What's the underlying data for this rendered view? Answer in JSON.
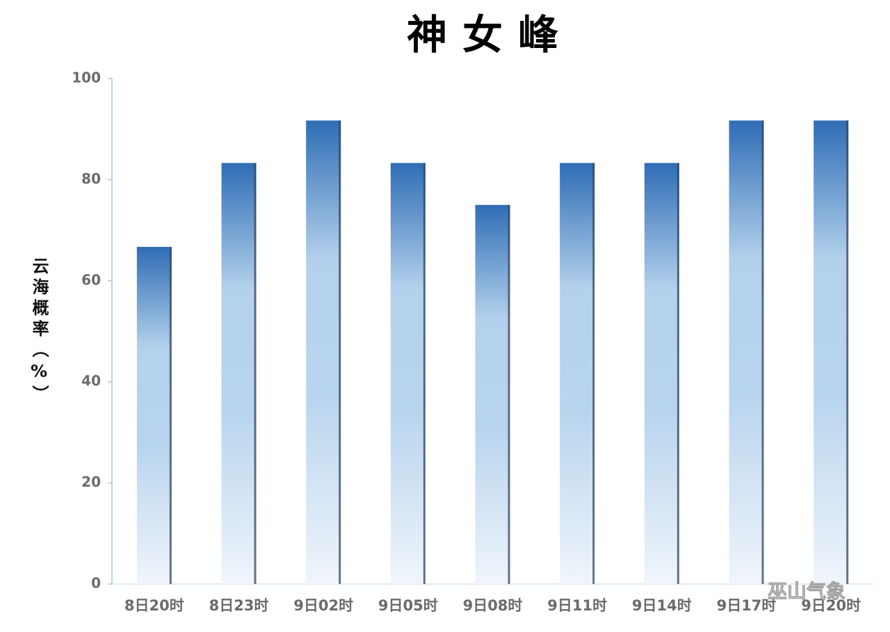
{
  "chart_data": {
    "type": "bar",
    "title": "神女峰",
    "y_label": "云海概率（%）",
    "categories": [
      "8日20时",
      "8日23时",
      "9日02时",
      "9日05时",
      "9日08时",
      "9日11时",
      "9日14时",
      "9日17时",
      "9日20时"
    ],
    "values": [
      66.7,
      83.3,
      91.7,
      83.3,
      75,
      83.3,
      83.3,
      91.7,
      91.7
    ],
    "color": "#2f6db5",
    "ylim": [
      0,
      100
    ],
    "yticks": [
      0,
      20,
      40,
      60,
      80,
      100
    ],
    "grid": false,
    "watermark": "巫山气象"
  }
}
